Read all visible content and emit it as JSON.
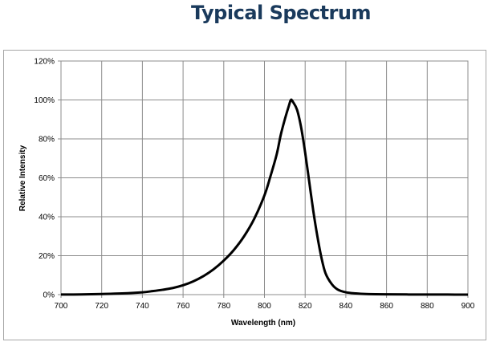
{
  "chart_data": {
    "type": "line",
    "title": "Typical Spectrum",
    "xlabel": "Wavelength (nm)",
    "ylabel": "Relative Intensity",
    "xlim": [
      700,
      900
    ],
    "ylim": [
      0,
      120
    ],
    "x_ticks": [
      "700",
      "720",
      "740",
      "760",
      "780",
      "800",
      "820",
      "840",
      "860",
      "880",
      "900"
    ],
    "y_ticks": [
      "0%",
      "20%",
      "40%",
      "60%",
      "80%",
      "100%",
      "120%"
    ],
    "grid": true,
    "legend": "none",
    "series": [
      {
        "color": "#000000",
        "x": [
          700,
          710,
          720,
          730,
          740,
          745,
          750,
          755,
          760,
          765,
          770,
          775,
          780,
          785,
          790,
          795,
          800,
          803,
          806,
          808,
          810,
          812,
          813,
          814,
          816,
          818,
          820,
          822,
          824,
          826,
          828,
          830,
          833,
          836,
          840,
          845,
          850,
          860,
          870,
          880,
          890,
          900
        ],
        "y": [
          0.05,
          0.1,
          0.3,
          0.6,
          1.2,
          1.8,
          2.5,
          3.4,
          4.8,
          6.8,
          9.5,
          13,
          17.5,
          23,
          30,
          39,
          51,
          61,
          72,
          82,
          90,
          97,
          100,
          99,
          95,
          86,
          73,
          58,
          43,
          30,
          19,
          11,
          5.5,
          2.6,
          1.2,
          0.6,
          0.3,
          0.15,
          0.08,
          0.05,
          0.03,
          0.02
        ]
      }
    ]
  }
}
